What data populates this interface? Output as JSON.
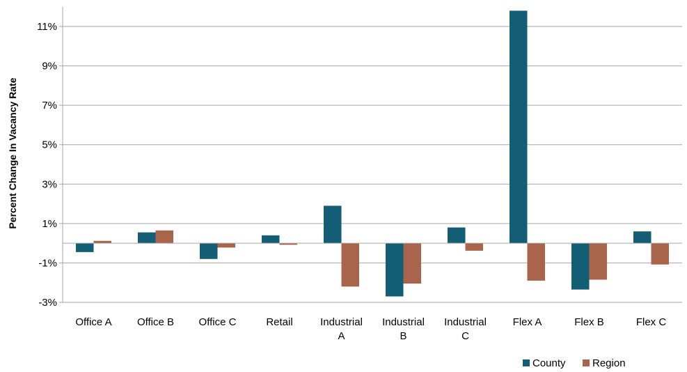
{
  "chart_data": {
    "type": "bar",
    "title": "",
    "xlabel": "",
    "ylabel": "Percent Change In Vacancy Rate",
    "ylim": [
      -3,
      12
    ],
    "yticks": [
      -3,
      -1,
      1,
      3,
      5,
      7,
      9,
      11
    ],
    "ytick_labels": [
      "-3%",
      "-1%",
      "1%",
      "3%",
      "5%",
      "7%",
      "9%",
      "11%"
    ],
    "grid": true,
    "legend_position": "bottom-right",
    "categories": [
      [
        "Office A"
      ],
      [
        "Office B"
      ],
      [
        "Office C"
      ],
      [
        "Retail"
      ],
      [
        "Industrial",
        "A"
      ],
      [
        "Industrial",
        "B"
      ],
      [
        "Industrial",
        "C"
      ],
      [
        "Flex A"
      ],
      [
        "Flex B"
      ],
      [
        "Flex C"
      ]
    ],
    "series": [
      {
        "name": "County",
        "color": "#135e74",
        "values": [
          -0.45,
          0.55,
          -0.8,
          0.4,
          1.9,
          -2.7,
          0.8,
          11.8,
          -2.35,
          0.6
        ]
      },
      {
        "name": "Region",
        "color": "#a9644c",
        "values": [
          0.12,
          0.65,
          -0.22,
          -0.08,
          -2.2,
          -2.05,
          -0.38,
          -1.9,
          -1.85,
          -1.08
        ]
      }
    ]
  }
}
